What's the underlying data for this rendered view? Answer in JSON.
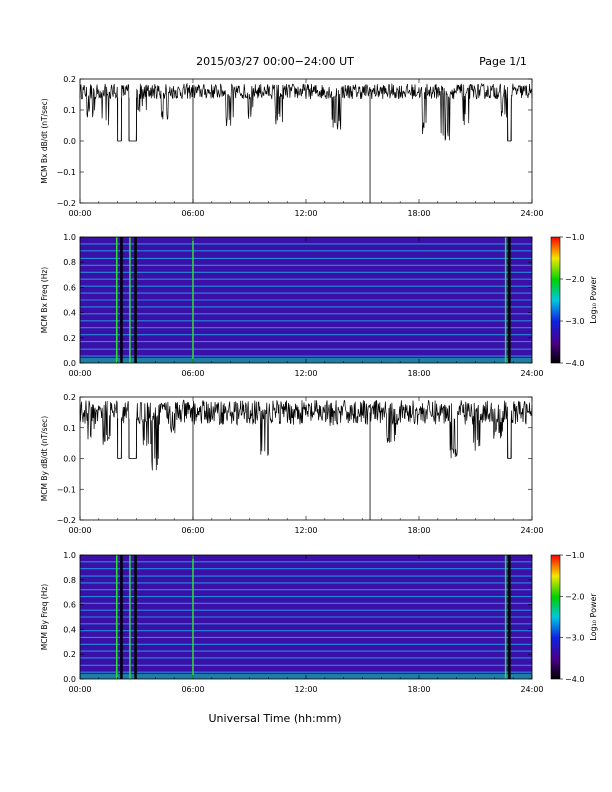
{
  "header": {
    "title": "2015/03/27  00:00−24:00 UT",
    "page": "Page 1/1"
  },
  "xlabel": "Universal Time (hh:mm)",
  "chart_data": [
    {
      "type": "line",
      "ylabel": "MCM Bx dB/dt (nT/sec)",
      "xlim": [
        0,
        24
      ],
      "ylim": [
        -0.2,
        0.2
      ],
      "x_ticks": [
        "00:00",
        "06:00",
        "12:00",
        "18:00",
        "24:00"
      ],
      "y_ticks": [
        "0.2",
        "0.1",
        "0.0",
        "−0.1",
        "−0.2"
      ],
      "baseline": 0.16,
      "noise": 0.025,
      "dips": [
        [
          0.6,
          0.07
        ],
        [
          1.4,
          0.05
        ],
        [
          3.3,
          0.09
        ],
        [
          4.5,
          0.06
        ],
        [
          8.0,
          0.04
        ],
        [
          9.0,
          0.07
        ],
        [
          10.6,
          0.05
        ],
        [
          13.6,
          0.03
        ],
        [
          18.3,
          0.02
        ],
        [
          19.4,
          0.0
        ],
        [
          20.4,
          0.05
        ],
        [
          22.5,
          0.06
        ]
      ],
      "gaps": [
        [
          2.0,
          2.2
        ],
        [
          2.6,
          3.0
        ],
        [
          22.7,
          22.9
        ]
      ],
      "spikes": [
        [
          6.0,
          -0.2
        ],
        [
          15.4,
          -0.2
        ]
      ]
    },
    {
      "type": "heatmap",
      "ylabel": "MCM Bx Freq (Hz)",
      "xlim": [
        0,
        24
      ],
      "ylim": [
        0,
        1.0
      ],
      "x_ticks": [
        "00:00",
        "06:00",
        "12:00",
        "18:00",
        "24:00"
      ],
      "y_ticks": [
        "1.0",
        "0.8",
        "0.6",
        "0.4",
        "0.2",
        "0.0"
      ],
      "colorbar": {
        "label": "Log₁₀ Power",
        "range": [
          -4.0,
          -1.0
        ],
        "ticks": [
          "−1.0",
          "−2.0",
          "−3.0",
          "−4.0"
        ]
      },
      "harmonic_lines_hz": [
        0.055,
        0.11,
        0.17,
        0.225,
        0.28,
        0.335,
        0.39,
        0.445,
        0.5,
        0.555,
        0.61,
        0.665,
        0.72,
        0.775,
        0.83,
        0.89,
        0.945
      ],
      "green_verticals_h": [
        1.95,
        2.65,
        6.0,
        22.6
      ],
      "dark_verticals_h": [
        2.2,
        2.95,
        22.8
      ]
    },
    {
      "type": "line",
      "ylabel": "MCM By dB/dt (nT/sec)",
      "xlim": [
        0,
        24
      ],
      "ylim": [
        -0.2,
        0.2
      ],
      "x_ticks": [
        "00:00",
        "06:00",
        "12:00",
        "18:00",
        "24:00"
      ],
      "y_ticks": [
        "0.2",
        "0.1",
        "0.0",
        "−0.1",
        "−0.2"
      ],
      "baseline": 0.15,
      "noise": 0.04,
      "dips": [
        [
          0.5,
          0.06
        ],
        [
          1.4,
          0.04
        ],
        [
          3.6,
          0.03
        ],
        [
          4.0,
          -0.04
        ],
        [
          5.0,
          0.08
        ],
        [
          9.8,
          0.0
        ],
        [
          13.5,
          0.07
        ],
        [
          16.5,
          0.05
        ],
        [
          19.9,
          0.0
        ],
        [
          21.0,
          0.02
        ],
        [
          22.2,
          0.06
        ]
      ],
      "gaps": [
        [
          2.0,
          2.2
        ],
        [
          2.6,
          3.0
        ],
        [
          22.7,
          22.9
        ]
      ],
      "spikes": [
        [
          6.0,
          -0.2
        ],
        [
          15.4,
          -0.2
        ]
      ]
    },
    {
      "type": "heatmap",
      "ylabel": "MCM By Freq (Hz)",
      "xlim": [
        0,
        24
      ],
      "ylim": [
        0,
        1.0
      ],
      "x_ticks": [
        "00:00",
        "06:00",
        "12:00",
        "18:00",
        "24:00"
      ],
      "y_ticks": [
        "1.0",
        "0.8",
        "0.6",
        "0.4",
        "0.2",
        "0.0"
      ],
      "colorbar": {
        "label": "Log₁₀ Power",
        "range": [
          -4.0,
          -1.0
        ],
        "ticks": [
          "−1.0",
          "−2.0",
          "−3.0",
          "−4.0"
        ]
      },
      "harmonic_lines_hz": [
        0.055,
        0.11,
        0.17,
        0.225,
        0.28,
        0.335,
        0.39,
        0.445,
        0.5,
        0.555,
        0.61,
        0.665,
        0.72,
        0.775,
        0.83,
        0.89,
        0.945
      ],
      "green_verticals_h": [
        1.95,
        2.65,
        6.0,
        22.6
      ],
      "dark_verticals_h": [
        2.2,
        2.95,
        22.8
      ]
    }
  ]
}
